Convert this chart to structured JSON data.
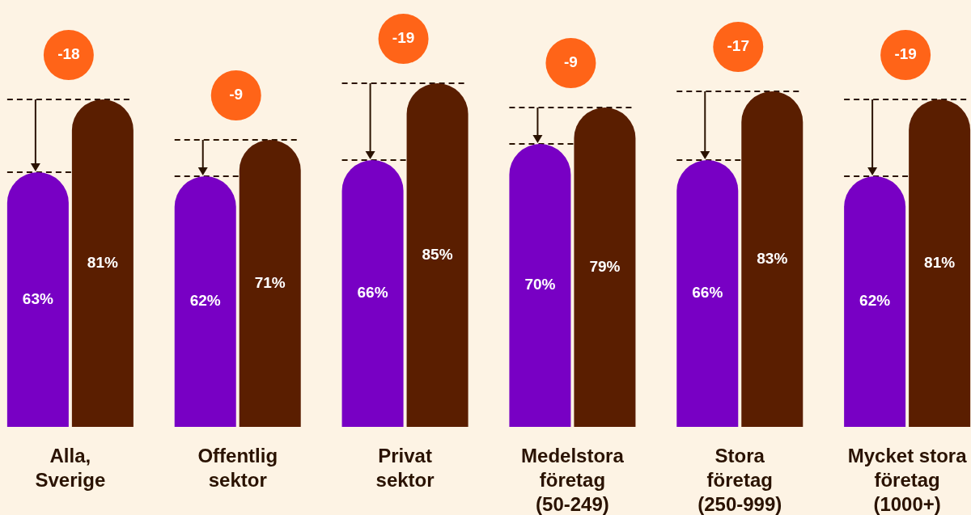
{
  "chart_data": {
    "type": "bar",
    "categories": [
      "Alla, Sverige",
      "Offentlig sektor",
      "Privat sektor",
      "Medelstora företag (50-249)",
      "Stora företag (250-999)",
      "Mycket stora företag (1000+)"
    ],
    "series": [
      {
        "color": "#7800c4",
        "values": [
          63,
          62,
          66,
          70,
          66,
          62
        ],
        "value_labels": [
          "63%",
          "62%",
          "66%",
          "70%",
          "66%",
          "62%"
        ]
      },
      {
        "color": "#5a1e00",
        "values": [
          81,
          71,
          85,
          79,
          83,
          81
        ],
        "value_labels": [
          "81%",
          "71%",
          "85%",
          "79%",
          "83%",
          "81%"
        ]
      }
    ],
    "annotations": [
      "-18",
      "-9",
      "-19",
      "-9",
      "-17",
      "-19"
    ]
  }
}
